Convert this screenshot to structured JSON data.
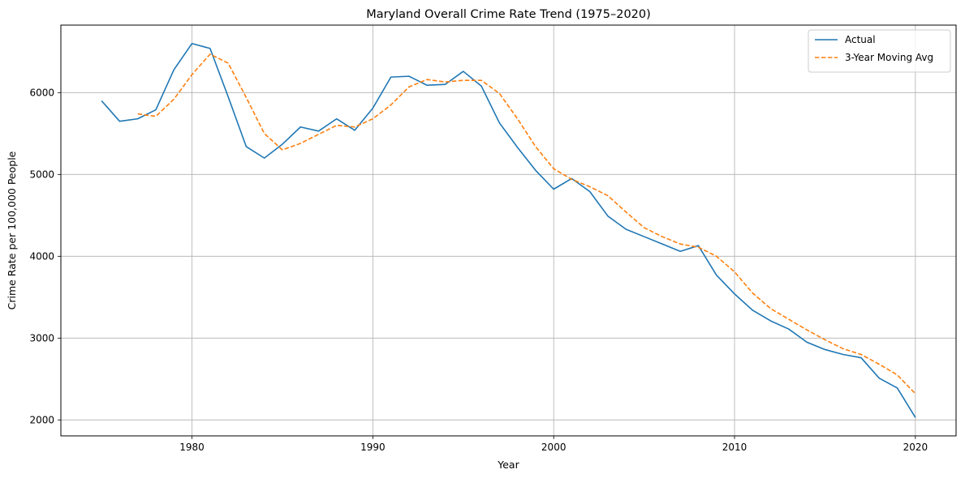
{
  "chart_data": {
    "type": "line",
    "title": "Maryland Overall Crime Rate Trend (1975–2020)",
    "xlabel": "Year",
    "ylabel": "Crime Rate per 100,000 People",
    "xlim": [
      1972.75,
      2022.25
    ],
    "ylim": [
      1805,
      6825
    ],
    "xticks": [
      1980,
      1990,
      2000,
      2010,
      2020
    ],
    "yticks": [
      2000,
      3000,
      4000,
      5000,
      6000
    ],
    "grid": true,
    "legend_position": "top-right",
    "series": [
      {
        "name": "Actual",
        "color": "#1f77b4",
        "style": "solid",
        "x": [
          1975,
          1976,
          1977,
          1978,
          1979,
          1980,
          1981,
          1982,
          1983,
          1984,
          1985,
          1986,
          1987,
          1988,
          1989,
          1990,
          1991,
          1992,
          1993,
          1994,
          1995,
          1996,
          1997,
          1998,
          1999,
          2000,
          2001,
          2002,
          2003,
          2004,
          2005,
          2006,
          2007,
          2008,
          2009,
          2010,
          2011,
          2012,
          2013,
          2014,
          2015,
          2016,
          2017,
          2018,
          2019,
          2020
        ],
        "values": [
          5900,
          5650,
          5680,
          5790,
          6280,
          6600,
          6540,
          5950,
          5340,
          5200,
          5370,
          5580,
          5530,
          5680,
          5540,
          5810,
          6190,
          6200,
          6090,
          6100,
          6260,
          6080,
          5630,
          5330,
          5050,
          4820,
          4950,
          4790,
          4490,
          4330,
          4240,
          4150,
          4060,
          4130,
          3770,
          3540,
          3340,
          3210,
          3110,
          2950,
          2860,
          2800,
          2760,
          2510,
          2390,
          2030
        ]
      },
      {
        "name": "3-Year Moving Avg",
        "color": "#ff7f0e",
        "style": "dashed",
        "x": [
          1977,
          1978,
          1979,
          1980,
          1981,
          1982,
          1983,
          1984,
          1985,
          1986,
          1987,
          1988,
          1989,
          1990,
          1991,
          1992,
          1993,
          1994,
          1995,
          1996,
          1997,
          1998,
          1999,
          2000,
          2001,
          2002,
          2003,
          2004,
          2005,
          2006,
          2007,
          2008,
          2009,
          2010,
          2011,
          2012,
          2013,
          2014,
          2015,
          2016,
          2017,
          2018,
          2019,
          2020
        ],
        "values": [
          5740,
          5710,
          5920,
          6220,
          6470,
          6360,
          5940,
          5500,
          5300,
          5380,
          5490,
          5600,
          5580,
          5680,
          5850,
          6070,
          6160,
          6130,
          6150,
          6150,
          5990,
          5680,
          5340,
          5070,
          4940,
          4850,
          4740,
          4540,
          4350,
          4240,
          4150,
          4110,
          4000,
          3810,
          3550,
          3360,
          3230,
          3100,
          2980,
          2870,
          2800,
          2680,
          2550,
          2320
        ]
      }
    ]
  }
}
